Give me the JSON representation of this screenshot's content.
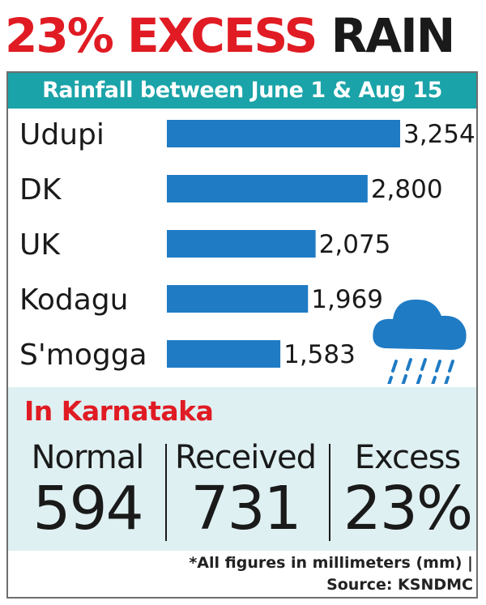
{
  "headline": {
    "part1": "23% EXCESS",
    "part2": "RAIN"
  },
  "subtitle": "Rainfall between June 1 & Aug 15",
  "chart_data": {
    "type": "bar",
    "orientation": "horizontal",
    "title": "Rainfall between June 1 & Aug 15",
    "categories": [
      "Udupi",
      "DK",
      "UK",
      "Kodagu",
      "S'mogga"
    ],
    "values": [
      3254,
      2800,
      2075,
      1969,
      1583
    ],
    "value_labels": [
      "3,254",
      "2,800",
      "2,075",
      "1,969",
      "1,583"
    ],
    "xlabel": "",
    "ylabel": "",
    "xlim": [
      0,
      3254
    ],
    "grid": false,
    "bar_color": "#1f7bc4"
  },
  "karnataka": {
    "title": "In Karnataka",
    "stats": [
      {
        "label": "Normal",
        "value": "594"
      },
      {
        "label": "Received",
        "value": "731"
      },
      {
        "label": "Excess",
        "value": "23%"
      }
    ]
  },
  "icon": "rain-cloud-icon",
  "footnote": {
    "line1": "*All figures in millimeters (mm) |",
    "line2": "Source: KSNDMC"
  },
  "colors": {
    "accent_red": "#e01b23",
    "teal": "#1aa3a8",
    "bar_blue": "#1f7bc4",
    "panel_bg": "#dff0f2"
  }
}
